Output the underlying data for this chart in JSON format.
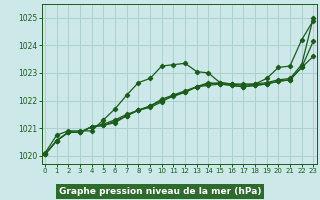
{
  "xlabel": "Graphe pression niveau de la mer (hPa)",
  "background_color": "#cce8e8",
  "grid_color": "#aad0d0",
  "line_color": "#1a5c1a",
  "label_bg_color": "#2d6b2d",
  "label_text_color": "#ffffff",
  "ylim": [
    1019.7,
    1025.5
  ],
  "xlim": [
    -0.3,
    23.3
  ],
  "yticks": [
    1020,
    1021,
    1022,
    1023,
    1024,
    1025
  ],
  "xticks": [
    0,
    1,
    2,
    3,
    4,
    5,
    6,
    7,
    8,
    9,
    10,
    11,
    12,
    13,
    14,
    15,
    16,
    17,
    18,
    19,
    20,
    21,
    22,
    23
  ],
  "series": [
    [
      1020.1,
      1020.75,
      1020.9,
      1020.9,
      1020.9,
      1021.3,
      1021.7,
      1022.2,
      1022.65,
      1022.8,
      1023.25,
      1023.3,
      1023.35,
      1023.05,
      1023.0,
      1022.65,
      1022.6,
      1022.6,
      1022.6,
      1022.8,
      1023.2,
      1023.25,
      1024.2,
      1024.9
    ],
    [
      1020.05,
      1020.55,
      1020.85,
      1020.85,
      1021.05,
      1021.15,
      1021.3,
      1021.5,
      1021.65,
      1021.8,
      1022.0,
      1022.15,
      1022.3,
      1022.5,
      1022.6,
      1022.65,
      1022.6,
      1022.55,
      1022.6,
      1022.65,
      1022.75,
      1022.8,
      1023.3,
      1025.0
    ],
    [
      1020.05,
      1020.55,
      1020.85,
      1020.85,
      1021.05,
      1021.1,
      1021.25,
      1021.45,
      1021.65,
      1021.8,
      1022.05,
      1022.2,
      1022.35,
      1022.5,
      1022.65,
      1022.6,
      1022.55,
      1022.5,
      1022.55,
      1022.6,
      1022.7,
      1022.75,
      1023.2,
      1024.15
    ],
    [
      1020.05,
      1020.55,
      1020.85,
      1020.85,
      1021.05,
      1021.1,
      1021.2,
      1021.45,
      1021.65,
      1021.75,
      1021.95,
      1022.2,
      1022.3,
      1022.5,
      1022.55,
      1022.6,
      1022.55,
      1022.5,
      1022.55,
      1022.6,
      1022.7,
      1022.75,
      1023.2,
      1023.6
    ]
  ]
}
